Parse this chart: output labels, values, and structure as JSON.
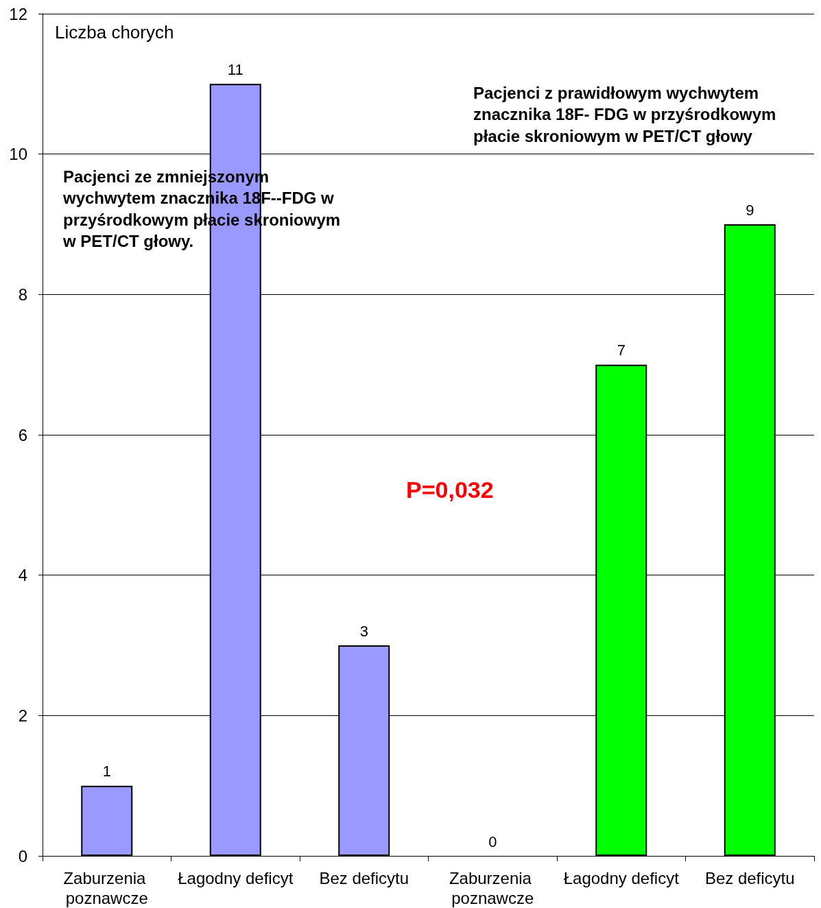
{
  "chart_data": {
    "type": "bar",
    "ylabel": "Liczba chorych",
    "categories": [
      "Zaburzenia poznawcze",
      "Łagodny deficyt",
      "Bez deficytu",
      "Zaburzenia poznawcze",
      "Łagodny deficyt",
      "Bez deficytu"
    ],
    "values": [
      1,
      11,
      3,
      0,
      7,
      9
    ],
    "colors": [
      "#9999ff",
      "#9999ff",
      "#9999ff",
      "#00ff00",
      "#00ff00",
      "#00ff00"
    ],
    "ylim": [
      0,
      12
    ],
    "yticks": [
      0,
      2,
      4,
      6,
      8,
      10,
      12
    ],
    "grid": "y",
    "data_labels": true,
    "annotations": [
      "Pacjenci ze zmniejszonym wychwytem znacznika 18F--FDG w przyśrodkowym płacie skroniowym w PET/CT głowy.",
      "Pacjenci z prawidłowym wychwytem znacznika 18F- FDG w przyśrodkowym płacie skroniowym w PET/CT głowy",
      "P=0,032"
    ]
  }
}
